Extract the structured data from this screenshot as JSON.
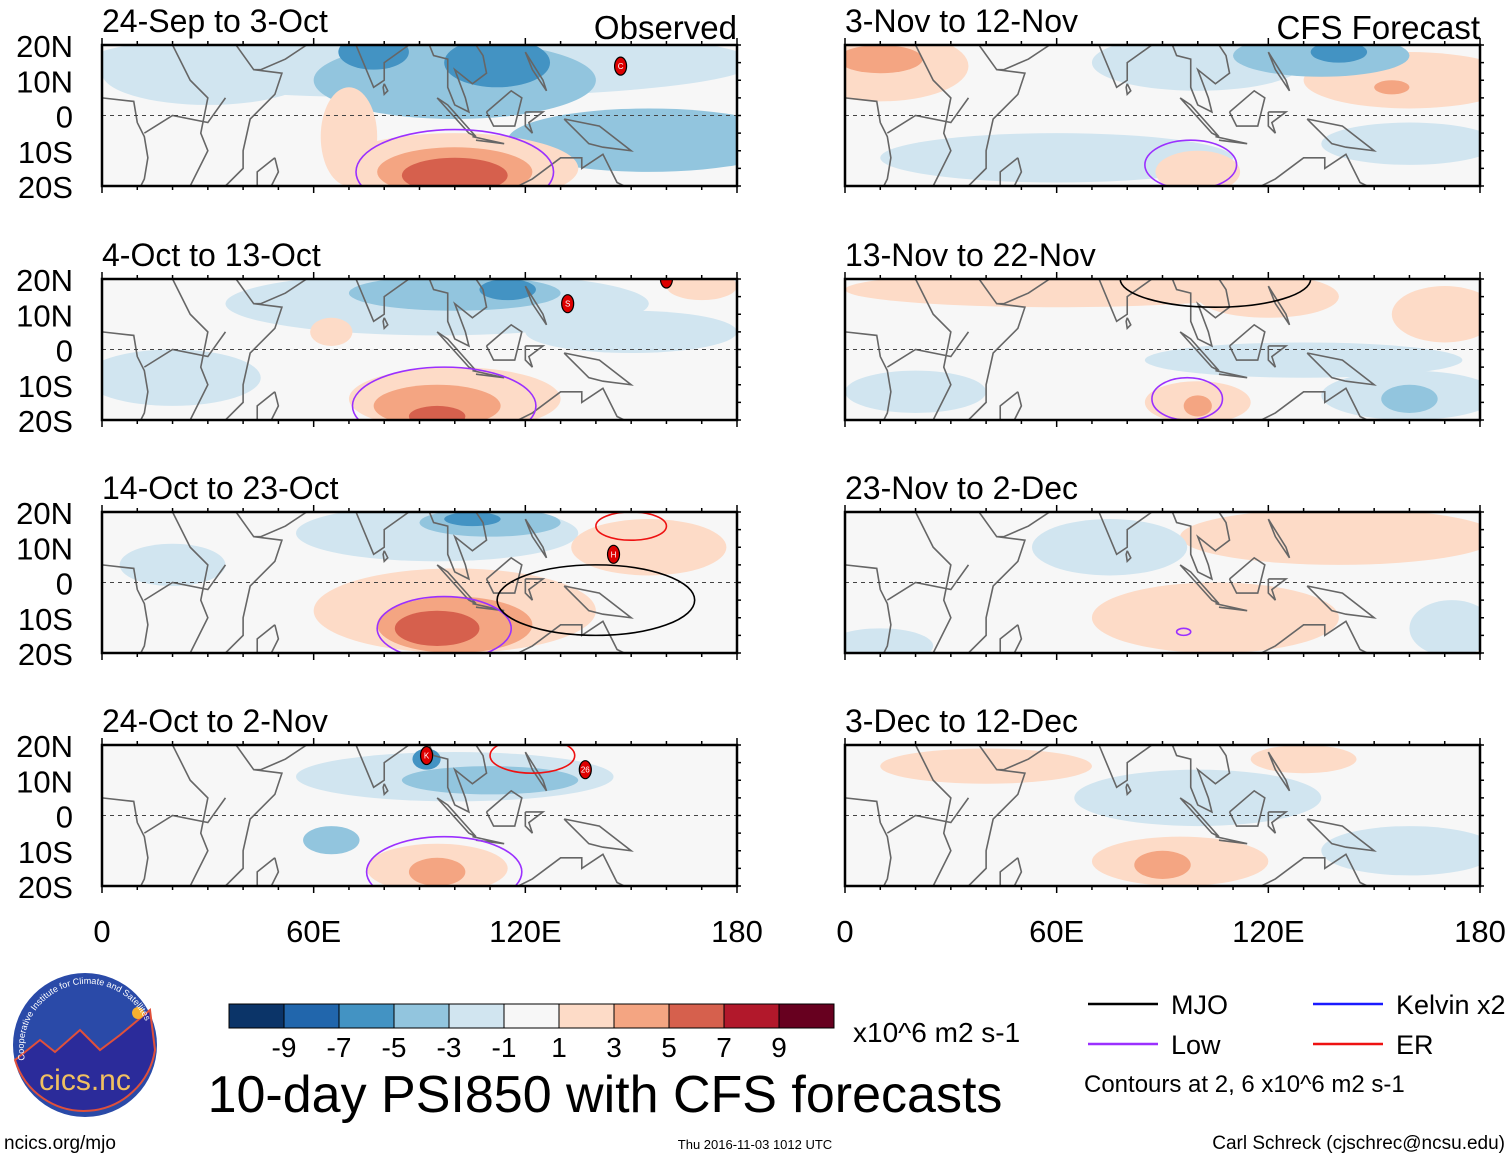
{
  "chart_data": {
    "type": "heatmap",
    "title": "10-day PSI850 with CFS forecasts",
    "units": "x10^6 m2 s-1",
    "xlim": [
      0,
      180
    ],
    "ylim": [
      -20,
      20
    ],
    "x_ticks": [
      "0",
      "60E",
      "120E",
      "180"
    ],
    "x_tick_values": [
      0,
      60,
      120,
      180
    ],
    "y_ticks": [
      "20N",
      "10N",
      "0",
      "10S",
      "20S"
    ],
    "y_tick_values": [
      20,
      10,
      0,
      -10,
      -20
    ],
    "column_labels": [
      "Observed",
      "CFS Forecast"
    ],
    "colorbar": {
      "labels": [
        "-9",
        "-7",
        "-5",
        "-3",
        "-1",
        "1",
        "3",
        "5",
        "7",
        "9"
      ],
      "colors": [
        "#0b3468",
        "#2166ac",
        "#4393c3",
        "#92c5de",
        "#d1e5f0",
        "#f7f7f7",
        "#fddbc7",
        "#f4a582",
        "#d6604d",
        "#b2182b",
        "#67001f"
      ]
    },
    "legend": {
      "items": [
        {
          "label": "MJO",
          "color": "#000000"
        },
        {
          "label": "Kelvin x2",
          "color": "#1a1aff"
        },
        {
          "label": "Low",
          "color": "#9b30ff"
        },
        {
          "label": "ER",
          "color": "#ee1111"
        }
      ],
      "note": "Contours at 2, 6 x10^6 m2 s-1"
    },
    "panels": [
      {
        "title": "24-Sep to 3-Oct",
        "column": 0,
        "features": [
          [
            90,
            15,
            95,
            10,
            -2
          ],
          [
            30,
            12,
            30,
            9,
            -2
          ],
          [
            155,
            -7,
            40,
            9,
            -4
          ],
          [
            100,
            10,
            40,
            11,
            -4
          ],
          [
            77,
            18,
            10,
            5,
            -6
          ],
          [
            112,
            15,
            15,
            7,
            -6
          ],
          [
            70,
            -6,
            8,
            14,
            2
          ],
          [
            100,
            -15,
            35,
            10,
            2
          ],
          [
            100,
            -16,
            22,
            7,
            4
          ],
          [
            100,
            -17,
            15,
            5,
            6
          ]
        ],
        "contours": [
          {
            "type": "Low",
            "lon": 100,
            "lat": -16,
            "rx": 28,
            "ry": 12
          }
        ],
        "cyclones": [
          {
            "lon": 147,
            "lat": 14,
            "label": "C"
          }
        ]
      },
      {
        "title": "4-Oct to 13-Oct",
        "column": 0,
        "features": [
          [
            95,
            13,
            60,
            9,
            -2
          ],
          [
            20,
            -8,
            25,
            8,
            -2
          ],
          [
            150,
            5,
            30,
            6,
            -2
          ],
          [
            100,
            16,
            30,
            5,
            -4
          ],
          [
            115,
            17,
            8,
            3,
            -6
          ],
          [
            65,
            5,
            6,
            4,
            2
          ],
          [
            100,
            -14,
            30,
            9,
            2
          ],
          [
            95,
            -16,
            18,
            6,
            4
          ],
          [
            95,
            -19,
            8,
            3,
            6
          ],
          [
            170,
            18,
            10,
            4,
            2
          ]
        ],
        "contours": [
          {
            "type": "Low",
            "lon": 97,
            "lat": -16,
            "rx": 26,
            "ry": 11
          }
        ],
        "cyclones": [
          {
            "lon": 132,
            "lat": 13,
            "label": "S"
          },
          {
            "lon": 160,
            "lat": 20,
            "label": ""
          }
        ]
      },
      {
        "title": "14-Oct to 23-Oct",
        "column": 0,
        "features": [
          [
            95,
            14,
            40,
            8,
            -2
          ],
          [
            20,
            5,
            15,
            6,
            -2
          ],
          [
            110,
            17,
            20,
            4,
            -4
          ],
          [
            105,
            18,
            8,
            2,
            -6
          ],
          [
            100,
            -8,
            40,
            12,
            2
          ],
          [
            155,
            10,
            22,
            8,
            2
          ],
          [
            100,
            -12,
            22,
            8,
            4
          ],
          [
            95,
            -13,
            12,
            5,
            6
          ]
        ],
        "contours": [
          {
            "type": "Low",
            "lon": 97,
            "lat": -13,
            "rx": 19,
            "ry": 9
          },
          {
            "type": "ER",
            "lon": 150,
            "lat": 16,
            "rx": 10,
            "ry": 4
          },
          {
            "type": "MJO",
            "lon": 140,
            "lat": -5,
            "rx": 28,
            "ry": 10
          }
        ],
        "cyclones": [
          {
            "lon": 145,
            "lat": 8,
            "label": "H"
          }
        ]
      },
      {
        "title": "24-Oct to 2-Nov",
        "column": 0,
        "features": [
          [
            100,
            11,
            45,
            7,
            -2
          ],
          [
            65,
            -7,
            8,
            4,
            -4
          ],
          [
            110,
            10,
            25,
            4,
            -4
          ],
          [
            92,
            16,
            4,
            3,
            -6
          ],
          [
            95,
            -15,
            20,
            7,
            2
          ],
          [
            95,
            -16,
            8,
            4,
            4
          ]
        ],
        "contours": [
          {
            "type": "Low",
            "lon": 97,
            "lat": -16,
            "rx": 22,
            "ry": 10
          },
          {
            "type": "ER",
            "lon": 122,
            "lat": 17,
            "rx": 12,
            "ry": 5
          }
        ],
        "cyclones": [
          {
            "lon": 92,
            "lat": 17,
            "label": "K"
          },
          {
            "lon": 137,
            "lat": 13,
            "label": "26"
          }
        ]
      },
      {
        "title": "3-Nov to 12-Nov",
        "column": 1,
        "features": [
          [
            100,
            15,
            30,
            8,
            -2
          ],
          [
            60,
            -12,
            50,
            7,
            -2
          ],
          [
            160,
            -8,
            25,
            6,
            -2
          ],
          [
            10,
            14,
            25,
            10,
            2
          ],
          [
            160,
            10,
            30,
            8,
            2
          ],
          [
            135,
            17,
            25,
            6,
            -4
          ],
          [
            140,
            18,
            8,
            3,
            -6
          ],
          [
            10,
            16,
            12,
            4,
            4
          ],
          [
            100,
            -16,
            12,
            6,
            2
          ],
          [
            155,
            8,
            5,
            2,
            4
          ]
        ],
        "contours": [
          {
            "type": "Low",
            "lon": 98,
            "lat": -14,
            "rx": 13,
            "ry": 7
          }
        ],
        "cyclones": []
      },
      {
        "title": "13-Nov to 22-Nov",
        "column": 1,
        "features": [
          [
            60,
            17,
            60,
            5,
            2
          ],
          [
            120,
            15,
            20,
            6,
            2
          ],
          [
            170,
            10,
            15,
            8,
            2
          ],
          [
            130,
            -3,
            45,
            5,
            -2
          ],
          [
            160,
            -13,
            25,
            7,
            -2
          ],
          [
            20,
            -12,
            20,
            6,
            -2
          ],
          [
            160,
            -14,
            8,
            4,
            -4
          ],
          [
            100,
            -15,
            15,
            6,
            2
          ],
          [
            100,
            -16,
            4,
            3,
            4
          ]
        ],
        "contours": [
          {
            "type": "MJO",
            "lon": 105,
            "lat": 20,
            "rx": 27,
            "ry": 8
          },
          {
            "type": "Low",
            "lon": 97,
            "lat": -14,
            "rx": 10,
            "ry": 6
          }
        ],
        "cyclones": []
      },
      {
        "title": "23-Nov to 2-Dec",
        "column": 1,
        "features": [
          [
            140,
            13,
            45,
            8,
            2
          ],
          [
            75,
            10,
            22,
            8,
            -2
          ],
          [
            105,
            -10,
            35,
            10,
            2
          ],
          [
            172,
            -13,
            12,
            8,
            -2
          ],
          [
            10,
            -18,
            15,
            5,
            -2
          ]
        ],
        "contours": [
          {
            "type": "Low",
            "lon": 96,
            "lat": -14,
            "rx": 2,
            "ry": 1
          }
        ],
        "cyclones": []
      },
      {
        "title": "3-Dec to 12-Dec",
        "column": 1,
        "features": [
          [
            40,
            14,
            30,
            5,
            2
          ],
          [
            100,
            5,
            35,
            8,
            -2
          ],
          [
            160,
            -10,
            25,
            7,
            -2
          ],
          [
            95,
            -13,
            25,
            7,
            2
          ],
          [
            90,
            -14,
            8,
            4,
            4
          ],
          [
            130,
            16,
            15,
            4,
            2
          ]
        ],
        "contours": [],
        "cyclones": []
      }
    ]
  },
  "logo": {
    "text": "cics.nc",
    "ring_text": "Cooperative Institute for Climate and Satellites"
  },
  "footer": {
    "left": "ncics.org/mjo",
    "timestamp": "Thu 2016-11-03 1012 UTC",
    "credit": "Carl Schreck (cjschrec@ncsu.edu)"
  }
}
